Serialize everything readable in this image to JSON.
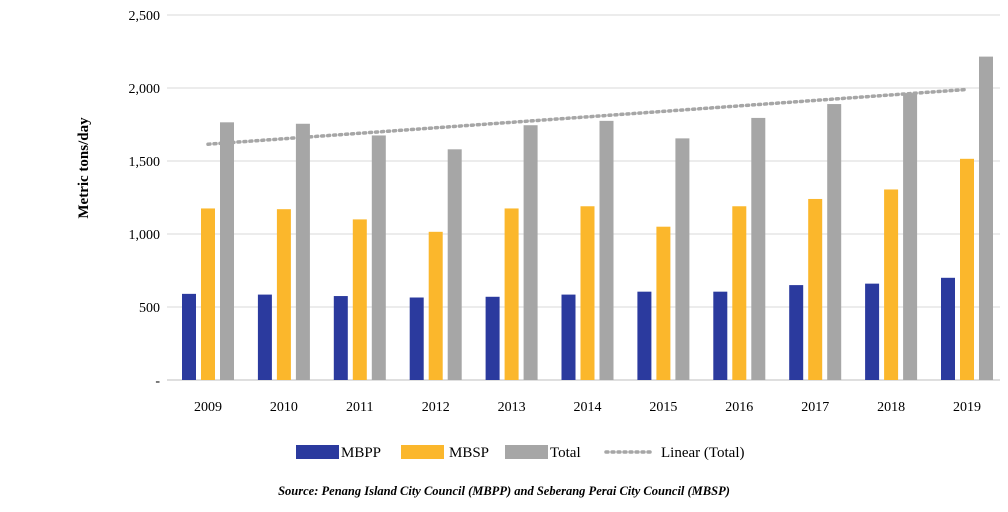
{
  "chart_data": {
    "type": "bar",
    "title": "",
    "xlabel": "",
    "ylabel": "Metric tons/day",
    "ylim": [
      0,
      2500
    ],
    "y_ticks": [
      {
        "value": 0,
        "label": "-"
      },
      {
        "value": 500,
        "label": "500"
      },
      {
        "value": 1000,
        "label": "1,000"
      },
      {
        "value": 1500,
        "label": "1,500"
      },
      {
        "value": 2000,
        "label": "2,000"
      },
      {
        "value": 2500,
        "label": "2,500"
      }
    ],
    "grid": "horizontal",
    "legend_position": "bottom",
    "categories": [
      "2009",
      "2010",
      "2011",
      "2012",
      "2013",
      "2014",
      "2015",
      "2016",
      "2017",
      "2018",
      "2019"
    ],
    "series": [
      {
        "name": "MBPP",
        "color": "#2b3a9e",
        "values": [
          590,
          585,
          575,
          565,
          570,
          585,
          605,
          605,
          650,
          660,
          700
        ]
      },
      {
        "name": "MBSP",
        "color": "#fbb72c",
        "values": [
          1175,
          1170,
          1100,
          1015,
          1175,
          1190,
          1050,
          1190,
          1240,
          1305,
          1515
        ]
      },
      {
        "name": "Total",
        "color": "#a6a6a6",
        "values": [
          1765,
          1755,
          1675,
          1580,
          1745,
          1775,
          1655,
          1795,
          1890,
          1965,
          2215
        ]
      }
    ],
    "trendline": {
      "name": "Linear (Total)",
      "color": "#a6a6a6",
      "style": "dotted",
      "start": 1615,
      "end": 1990
    }
  },
  "source": "Source: Penang Island City Council (MBPP) and Seberang Perai City Council (MBSP)"
}
